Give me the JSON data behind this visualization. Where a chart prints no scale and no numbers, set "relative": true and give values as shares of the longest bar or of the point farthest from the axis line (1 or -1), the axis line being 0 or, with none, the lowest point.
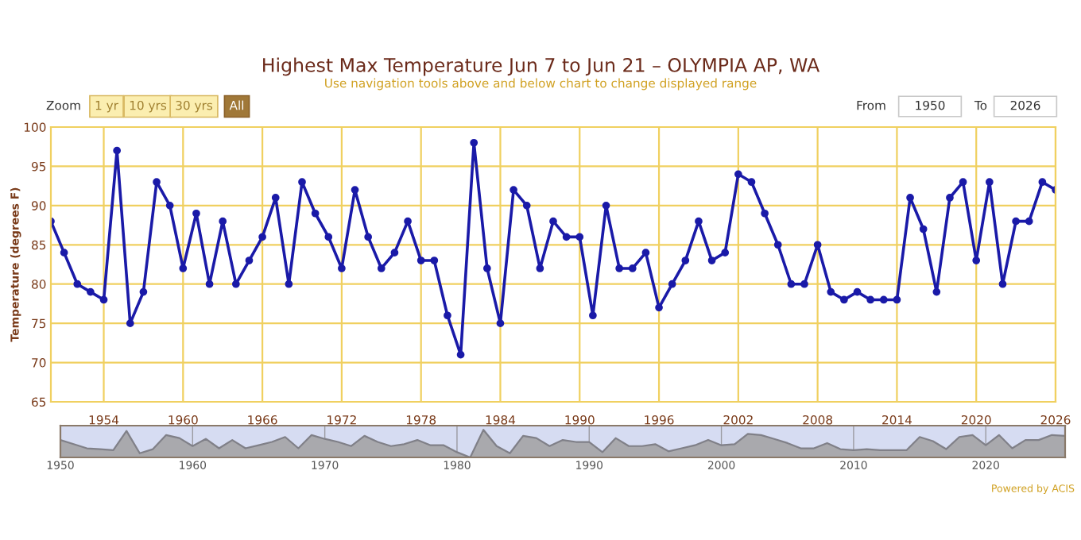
{
  "chart_data": [
    {
      "type": "line",
      "title": "Highest Max Temperature Jun 7 to Jun 21 – OLYMPIA AP, WA",
      "subtitle": "Use navigation tools above and below chart to change displayed range",
      "ylabel": "Temperature (degrees F)",
      "annotations": [
        "Zoom",
        "1 yr",
        "10 yrs",
        "30 yrs",
        "All",
        "From",
        "1950",
        "To",
        "2026"
      ],
      "x": [
        1950,
        1951,
        1952,
        1953,
        1954,
        1955,
        1956,
        1957,
        1958,
        1959,
        1960,
        1961,
        1962,
        1963,
        1964,
        1965,
        1966,
        1967,
        1968,
        1969,
        1970,
        1971,
        1972,
        1973,
        1974,
        1975,
        1976,
        1977,
        1978,
        1979,
        1980,
        1981,
        1982,
        1983,
        1984,
        1985,
        1986,
        1987,
        1988,
        1989,
        1990,
        1991,
        1992,
        1993,
        1994,
        1995,
        1996,
        1997,
        1998,
        1999,
        2000,
        2001,
        2002,
        2003,
        2004,
        2005,
        2006,
        2007,
        2008,
        2009,
        2010,
        2011,
        2012,
        2013,
        2014,
        2015,
        2016,
        2017,
        2018,
        2019,
        2020,
        2021,
        2022,
        2023,
        2024,
        2025,
        2026
      ],
      "series": [
        {
          "color": "#1a1aa8",
          "values": [
            88,
            84,
            80,
            79,
            78,
            97,
            75,
            79,
            93,
            90,
            82,
            89,
            80,
            88,
            80,
            83,
            86,
            91,
            80,
            93,
            89,
            86,
            82,
            92,
            86,
            82,
            84,
            88,
            83,
            83,
            76,
            71,
            98,
            82,
            75,
            92,
            90,
            82,
            88,
            86,
            86,
            76,
            90,
            82,
            82,
            84,
            77,
            80,
            83,
            88,
            83,
            84,
            94,
            93,
            89,
            85,
            80,
            80,
            85,
            79,
            78,
            79,
            78,
            78,
            78,
            91,
            87,
            79,
            91,
            93,
            83,
            93,
            80,
            88,
            88,
            93,
            92
          ]
        }
      ],
      "xlim": [
        1950,
        2026
      ],
      "ylim": [
        65,
        100
      ],
      "xticks": [
        1954,
        1960,
        1966,
        1972,
        1978,
        1984,
        1990,
        1996,
        2002,
        2008,
        2014,
        2020,
        2026
      ],
      "yticks": [
        65,
        70,
        75,
        80,
        85,
        90,
        95,
        100
      ],
      "grid": true,
      "marker": "circle",
      "line_style": "solid",
      "legend": false
    },
    {
      "type": "area",
      "relative": true,
      "annotations": [
        "Powered by ACIS"
      ],
      "tick_labels": "x",
      "x": [
        1950,
        1951,
        1952,
        1953,
        1954,
        1955,
        1956,
        1957,
        1958,
        1959,
        1960,
        1961,
        1962,
        1963,
        1964,
        1965,
        1966,
        1967,
        1968,
        1969,
        1970,
        1971,
        1972,
        1973,
        1974,
        1975,
        1976,
        1977,
        1978,
        1979,
        1980,
        1981,
        1982,
        1983,
        1984,
        1985,
        1986,
        1987,
        1988,
        1989,
        1990,
        1991,
        1992,
        1993,
        1994,
        1995,
        1996,
        1997,
        1998,
        1999,
        2000,
        2001,
        2002,
        2003,
        2004,
        2005,
        2006,
        2007,
        2008,
        2009,
        2010,
        2011,
        2012,
        2013,
        2014,
        2015,
        2016,
        2017,
        2018,
        2019,
        2020,
        2021,
        2022,
        2023,
        2024,
        2025,
        2026
      ],
      "series": [
        {
          "color": "#a9a9ad",
          "values": [
            0.63,
            0.48,
            0.33,
            0.3,
            0.26,
            0.96,
            0.15,
            0.3,
            0.81,
            0.7,
            0.41,
            0.67,
            0.33,
            0.63,
            0.33,
            0.44,
            0.56,
            0.74,
            0.33,
            0.81,
            0.67,
            0.56,
            0.41,
            0.78,
            0.56,
            0.41,
            0.48,
            0.63,
            0.44,
            0.44,
            0.19,
            0,
            1,
            0.41,
            0.15,
            0.78,
            0.7,
            0.41,
            0.63,
            0.56,
            0.56,
            0.19,
            0.7,
            0.41,
            0.41,
            0.48,
            0.22,
            0.33,
            0.44,
            0.63,
            0.44,
            0.48,
            0.85,
            0.81,
            0.67,
            0.52,
            0.33,
            0.33,
            0.52,
            0.3,
            0.26,
            0.3,
            0.26,
            0.26,
            0.26,
            0.74,
            0.59,
            0.3,
            0.74,
            0.81,
            0.44,
            0.81,
            0.33,
            0.63,
            0.63,
            0.81,
            0.78
          ]
        }
      ],
      "xlim": [
        1950,
        2026
      ],
      "xticks": [
        1950,
        1960,
        1970,
        1980,
        1990,
        2000,
        2010,
        2020
      ],
      "grid": "x",
      "legend": false
    }
  ]
}
